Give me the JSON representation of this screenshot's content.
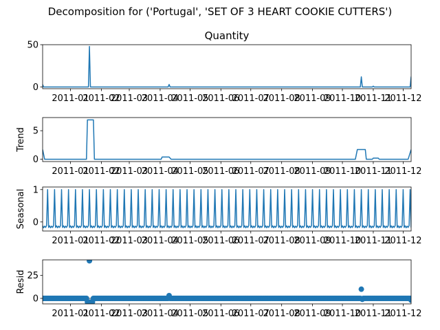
{
  "figure": {
    "suptitle": "Decomposition for ('Portugal', 'SET OF 3 HEART COOKIE CUTTERS')",
    "line_color": "#1f77b4"
  },
  "chart_data": [
    {
      "type": "line",
      "panel": "observed",
      "title": "Quantity",
      "ylabel": "",
      "x_domain": [
        "2010-12-04",
        "2011-12-09"
      ],
      "xtick_labels": [
        "2011-01",
        "2011-02",
        "2011-03",
        "2011-04",
        "2011-05",
        "2011-06",
        "2011-07",
        "2011-08",
        "2011-09",
        "2011-10",
        "2011-11",
        "2011-12"
      ],
      "xtick_dates": [
        "2011-01-01",
        "2011-02-01",
        "2011-03-01",
        "2011-04-01",
        "2011-05-01",
        "2011-06-01",
        "2011-07-01",
        "2011-08-01",
        "2011-09-01",
        "2011-10-01",
        "2011-11-01",
        "2011-12-01"
      ],
      "ylim": [
        -2,
        50
      ],
      "yticks": [
        0,
        50
      ],
      "baseline": 0,
      "spikes": [
        {
          "x": "2010-12-04",
          "y": 3
        },
        {
          "x": "2011-01-20",
          "y": 48
        },
        {
          "x": "2011-04-10",
          "y": 3
        },
        {
          "x": "2011-10-20",
          "y": 12
        },
        {
          "x": "2011-11-01",
          "y": 1
        },
        {
          "x": "2011-12-09",
          "y": 12
        }
      ]
    },
    {
      "type": "line",
      "panel": "trend",
      "title": "",
      "ylabel": "Trend",
      "x_domain": [
        "2010-12-04",
        "2011-12-09"
      ],
      "xtick_labels": [
        "2011-01",
        "2011-02",
        "2011-03",
        "2011-04",
        "2011-05",
        "2011-06",
        "2011-07",
        "2011-08",
        "2011-09",
        "2011-10",
        "2011-11",
        "2011-12"
      ],
      "xtick_dates": [
        "2011-01-01",
        "2011-02-01",
        "2011-03-01",
        "2011-04-01",
        "2011-05-01",
        "2011-06-01",
        "2011-07-01",
        "2011-08-01",
        "2011-09-01",
        "2011-10-01",
        "2011-11-01",
        "2011-12-01"
      ],
      "ylim": [
        -0.4,
        7.3
      ],
      "yticks": [
        0,
        5
      ],
      "points": [
        {
          "x": "2010-12-04",
          "y": 1.7
        },
        {
          "x": "2010-12-06",
          "y": 0
        },
        {
          "x": "2011-01-17",
          "y": 0
        },
        {
          "x": "2011-01-18",
          "y": 6.9
        },
        {
          "x": "2011-01-24",
          "y": 6.9
        },
        {
          "x": "2011-01-25",
          "y": 0
        },
        {
          "x": "2011-04-02",
          "y": 0
        },
        {
          "x": "2011-04-03",
          "y": 0.4
        },
        {
          "x": "2011-04-10",
          "y": 0.4
        },
        {
          "x": "2011-04-12",
          "y": 0
        },
        {
          "x": "2011-10-14",
          "y": 0
        },
        {
          "x": "2011-10-16",
          "y": 1.7
        },
        {
          "x": "2011-10-24",
          "y": 1.7
        },
        {
          "x": "2011-10-25",
          "y": 0
        },
        {
          "x": "2011-10-31",
          "y": 0
        },
        {
          "x": "2011-11-01",
          "y": 0.2
        },
        {
          "x": "2011-11-06",
          "y": 0.2
        },
        {
          "x": "2011-11-07",
          "y": 0
        },
        {
          "x": "2011-12-06",
          "y": 0
        },
        {
          "x": "2011-12-09",
          "y": 1.7
        }
      ]
    },
    {
      "type": "line",
      "panel": "seasonal",
      "title": "",
      "ylabel": "Seasonal",
      "x_domain": [
        "2010-12-04",
        "2011-12-09"
      ],
      "xtick_labels": [
        "2011-01",
        "2011-02",
        "2011-03",
        "2011-04",
        "2011-05",
        "2011-06",
        "2011-07",
        "2011-08",
        "2011-09",
        "2011-10",
        "2011-11",
        "2011-12"
      ],
      "xtick_dates": [
        "2011-01-01",
        "2011-02-01",
        "2011-03-01",
        "2011-04-01",
        "2011-05-01",
        "2011-06-01",
        "2011-07-01",
        "2011-08-01",
        "2011-09-01",
        "2011-10-01",
        "2011-11-01",
        "2011-12-01"
      ],
      "ylim": [
        -0.28,
        1.08
      ],
      "yticks": [
        0,
        1
      ],
      "period_days": 7,
      "pattern": [
        1.0,
        -0.17,
        -0.12,
        -0.18,
        -0.13,
        -0.17,
        -0.11
      ]
    },
    {
      "type": "scatter",
      "panel": "resid",
      "title": "",
      "ylabel": "Resid",
      "x_domain": [
        "2010-12-04",
        "2011-12-09"
      ],
      "xtick_labels": [
        "2011-01",
        "2011-02",
        "2011-03",
        "2011-04",
        "2011-05",
        "2011-06",
        "2011-07",
        "2011-08",
        "2011-09",
        "2011-10",
        "2011-11",
        "2011-12"
      ],
      "xtick_dates": [
        "2011-01-01",
        "2011-02-01",
        "2011-03-01",
        "2011-04-01",
        "2011-05-01",
        "2011-06-01",
        "2011-07-01",
        "2011-08-01",
        "2011-09-01",
        "2011-10-01",
        "2011-11-01",
        "2011-12-01"
      ],
      "ylim": [
        -6,
        42
      ],
      "yticks": [
        0,
        25
      ],
      "baseline": 0,
      "outliers": [
        {
          "x": "2011-01-18",
          "y": -4
        },
        {
          "x": "2011-01-19",
          "y": -4
        },
        {
          "x": "2011-01-20",
          "y": 41
        },
        {
          "x": "2011-01-21",
          "y": -4
        },
        {
          "x": "2011-01-22",
          "y": -4
        },
        {
          "x": "2011-01-23",
          "y": -4
        },
        {
          "x": "2011-04-10",
          "y": 3
        },
        {
          "x": "2011-10-20",
          "y": 10
        },
        {
          "x": "2011-10-21",
          "y": -1
        },
        {
          "x": "2011-12-09",
          "y": -2
        }
      ]
    }
  ]
}
